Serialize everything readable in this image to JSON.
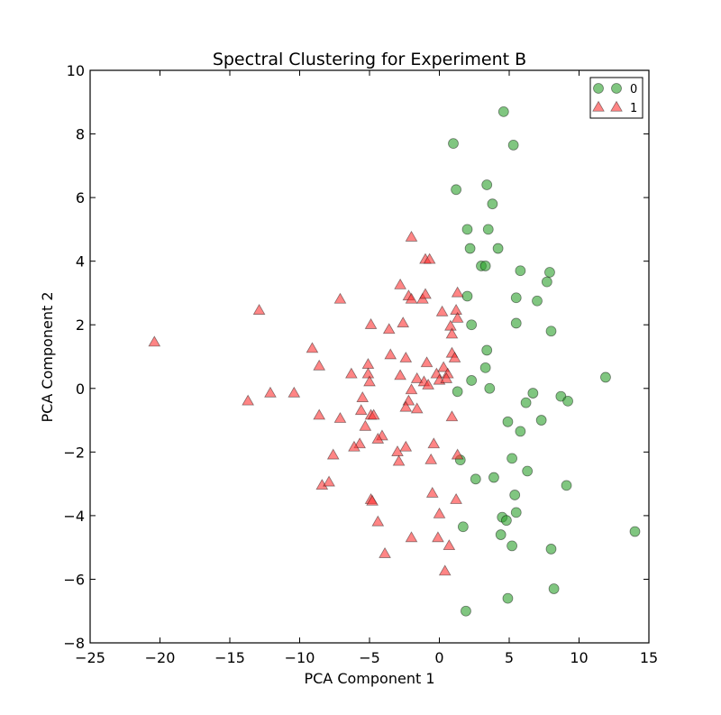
{
  "chart_data": {
    "type": "scatter",
    "title": "Spectral Clustering for Experiment B",
    "xlabel": "PCA Component 1",
    "ylabel": "PCA Component 2",
    "xlim": [
      -25,
      15
    ],
    "ylim": [
      -8,
      10
    ],
    "xticks": [
      -25,
      -20,
      -15,
      -10,
      -5,
      0,
      5,
      10,
      15
    ],
    "yticks": [
      -8,
      -6,
      -4,
      -2,
      0,
      2,
      4,
      6,
      8,
      10
    ],
    "grid": false,
    "legend_position": "top-right",
    "series": [
      {
        "name": "0",
        "marker": "circle",
        "color": "#2ca02c",
        "points": [
          [
            4.6,
            8.7
          ],
          [
            1.0,
            7.7
          ],
          [
            5.3,
            7.65
          ],
          [
            1.2,
            6.25
          ],
          [
            3.4,
            6.4
          ],
          [
            3.8,
            5.8
          ],
          [
            2.0,
            5.0
          ],
          [
            3.5,
            5.0
          ],
          [
            2.2,
            4.4
          ],
          [
            4.2,
            4.4
          ],
          [
            3.0,
            3.85
          ],
          [
            3.3,
            3.85
          ],
          [
            5.8,
            3.7
          ],
          [
            7.9,
            3.65
          ],
          [
            7.7,
            3.35
          ],
          [
            2.0,
            2.9
          ],
          [
            5.5,
            2.85
          ],
          [
            7.0,
            2.75
          ],
          [
            2.3,
            2.0
          ],
          [
            5.5,
            2.05
          ],
          [
            8.0,
            1.8
          ],
          [
            3.4,
            1.2
          ],
          [
            3.3,
            0.65
          ],
          [
            11.9,
            0.35
          ],
          [
            2.3,
            0.25
          ],
          [
            1.3,
            -0.1
          ],
          [
            3.6,
            0.0
          ],
          [
            6.7,
            -0.15
          ],
          [
            8.7,
            -0.25
          ],
          [
            9.2,
            -0.4
          ],
          [
            6.2,
            -0.45
          ],
          [
            4.9,
            -1.05
          ],
          [
            7.3,
            -1.0
          ],
          [
            5.8,
            -1.35
          ],
          [
            5.2,
            -2.2
          ],
          [
            1.5,
            -2.25
          ],
          [
            6.3,
            -2.6
          ],
          [
            3.9,
            -2.8
          ],
          [
            2.6,
            -2.85
          ],
          [
            9.1,
            -3.05
          ],
          [
            5.4,
            -3.35
          ],
          [
            5.5,
            -3.9
          ],
          [
            4.5,
            -4.05
          ],
          [
            4.8,
            -4.15
          ],
          [
            1.7,
            -4.35
          ],
          [
            4.4,
            -4.6
          ],
          [
            14.0,
            -4.5
          ],
          [
            5.2,
            -4.95
          ],
          [
            8.0,
            -5.05
          ],
          [
            8.2,
            -6.3
          ],
          [
            4.9,
            -6.6
          ],
          [
            1.9,
            -7.0
          ]
        ]
      },
      {
        "name": "1",
        "marker": "triangle",
        "color": "#ff3333",
        "points": [
          [
            -2.0,
            4.75
          ],
          [
            -1.0,
            4.05
          ],
          [
            -0.7,
            4.05
          ],
          [
            -2.8,
            3.25
          ],
          [
            -7.1,
            2.8
          ],
          [
            -2.2,
            2.9
          ],
          [
            -2.0,
            2.8
          ],
          [
            -1.2,
            2.8
          ],
          [
            -1.0,
            2.95
          ],
          [
            1.3,
            3.0
          ],
          [
            -12.9,
            2.45
          ],
          [
            0.2,
            2.4
          ],
          [
            1.2,
            2.45
          ],
          [
            -4.9,
            2.0
          ],
          [
            -2.6,
            2.05
          ],
          [
            0.8,
            1.95
          ],
          [
            1.3,
            2.2
          ],
          [
            -3.6,
            1.85
          ],
          [
            0.9,
            1.7
          ],
          [
            -20.4,
            1.45
          ],
          [
            -9.1,
            1.25
          ],
          [
            -3.5,
            1.05
          ],
          [
            -2.4,
            0.95
          ],
          [
            0.9,
            1.1
          ],
          [
            1.1,
            0.95
          ],
          [
            -5.1,
            0.75
          ],
          [
            -0.9,
            0.8
          ],
          [
            -8.6,
            0.7
          ],
          [
            -6.3,
            0.45
          ],
          [
            -5.1,
            0.45
          ],
          [
            -2.8,
            0.4
          ],
          [
            -0.2,
            0.45
          ],
          [
            0.3,
            0.65
          ],
          [
            0.6,
            0.45
          ],
          [
            -5.0,
            0.2
          ],
          [
            -1.6,
            0.3
          ],
          [
            -1.1,
            0.2
          ],
          [
            -0.8,
            0.1
          ],
          [
            0.0,
            0.25
          ],
          [
            0.5,
            0.3
          ],
          [
            -2.0,
            -0.05
          ],
          [
            -12.1,
            -0.15
          ],
          [
            -10.4,
            -0.15
          ],
          [
            -13.7,
            -0.4
          ],
          [
            -5.5,
            -0.3
          ],
          [
            -2.2,
            -0.4
          ],
          [
            -1.6,
            -0.65
          ],
          [
            -2.4,
            -0.6
          ],
          [
            -5.6,
            -0.7
          ],
          [
            -8.6,
            -0.85
          ],
          [
            -4.9,
            -0.85
          ],
          [
            -4.7,
            -0.85
          ],
          [
            -7.1,
            -0.95
          ],
          [
            0.9,
            -0.9
          ],
          [
            -5.3,
            -1.2
          ],
          [
            -4.1,
            -1.5
          ],
          [
            -4.4,
            -1.6
          ],
          [
            -5.7,
            -1.75
          ],
          [
            -6.1,
            -1.85
          ],
          [
            -2.4,
            -1.85
          ],
          [
            -0.4,
            -1.75
          ],
          [
            -7.6,
            -2.1
          ],
          [
            -3.0,
            -2.0
          ],
          [
            1.3,
            -2.1
          ],
          [
            -0.6,
            -2.25
          ],
          [
            -2.9,
            -2.3
          ],
          [
            -0.5,
            -3.3
          ],
          [
            -8.4,
            -3.05
          ],
          [
            -7.9,
            -2.95
          ],
          [
            -4.9,
            -3.5
          ],
          [
            -4.8,
            -3.55
          ],
          [
            1.2,
            -3.5
          ],
          [
            0.0,
            -3.95
          ],
          [
            -4.4,
            -4.2
          ],
          [
            -2.0,
            -4.7
          ],
          [
            -0.1,
            -4.7
          ],
          [
            0.7,
            -4.95
          ],
          [
            -3.9,
            -5.2
          ],
          [
            0.4,
            -5.75
          ]
        ]
      }
    ]
  }
}
